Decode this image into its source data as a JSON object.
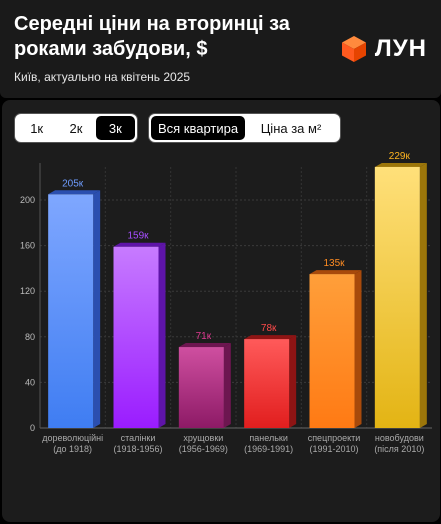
{
  "header": {
    "title": "Середні ціни на вторинці за роками забудови, $",
    "subtitle": "Київ, актуально на квітень 2025",
    "brand": "ЛУН"
  },
  "controls": {
    "rooms": [
      "1к",
      "2к",
      "3к"
    ],
    "rooms_selected": "3к",
    "modes": [
      "Вся квартира",
      "Ціна за м²"
    ],
    "mode_selected": "Вся квартира"
  },
  "chart_data": {
    "type": "bar",
    "title": "",
    "xlabel": "",
    "ylabel": "",
    "ylim": [
      0,
      229
    ],
    "yticks": [
      0,
      40,
      80,
      120,
      160,
      200
    ],
    "grid": true,
    "categories": [
      {
        "name": "дореволюційні",
        "years": "(до 1918)"
      },
      {
        "name": "сталінки",
        "years": "(1918-1956)"
      },
      {
        "name": "хрущовки",
        "years": "(1956-1969)"
      },
      {
        "name": "панельки",
        "years": "(1969-1991)"
      },
      {
        "name": "спецпроекти",
        "years": "(1991-2010)"
      },
      {
        "name": "новобудови",
        "years": "(після 2010)"
      }
    ],
    "values": [
      205,
      159,
      71,
      78,
      135,
      229
    ],
    "labels": [
      "205к",
      "159к",
      "71к",
      "78к",
      "135к",
      "229к"
    ],
    "colors": [
      {
        "top": "#7fa7ff",
        "bottom": "#3f7df2",
        "side": "#2b4fb0",
        "label": "#6e9cff"
      },
      {
        "top": "#c77bff",
        "bottom": "#9a1cff",
        "side": "#5e14a8",
        "label": "#a64dff"
      },
      {
        "top": "#cf4fa0",
        "bottom": "#8d1a66",
        "side": "#6d1650",
        "label": "#e03a92"
      },
      {
        "top": "#ff5a5a",
        "bottom": "#e11e1e",
        "side": "#8e1414",
        "label": "#ff4a4a"
      },
      {
        "top": "#ff9f3a",
        "bottom": "#ff7a14",
        "side": "#a84a0b",
        "label": "#ff8c22"
      },
      {
        "top": "#ffe07a",
        "bottom": "#e3b414",
        "side": "#9c760a",
        "label": "#ffb520"
      }
    ]
  }
}
